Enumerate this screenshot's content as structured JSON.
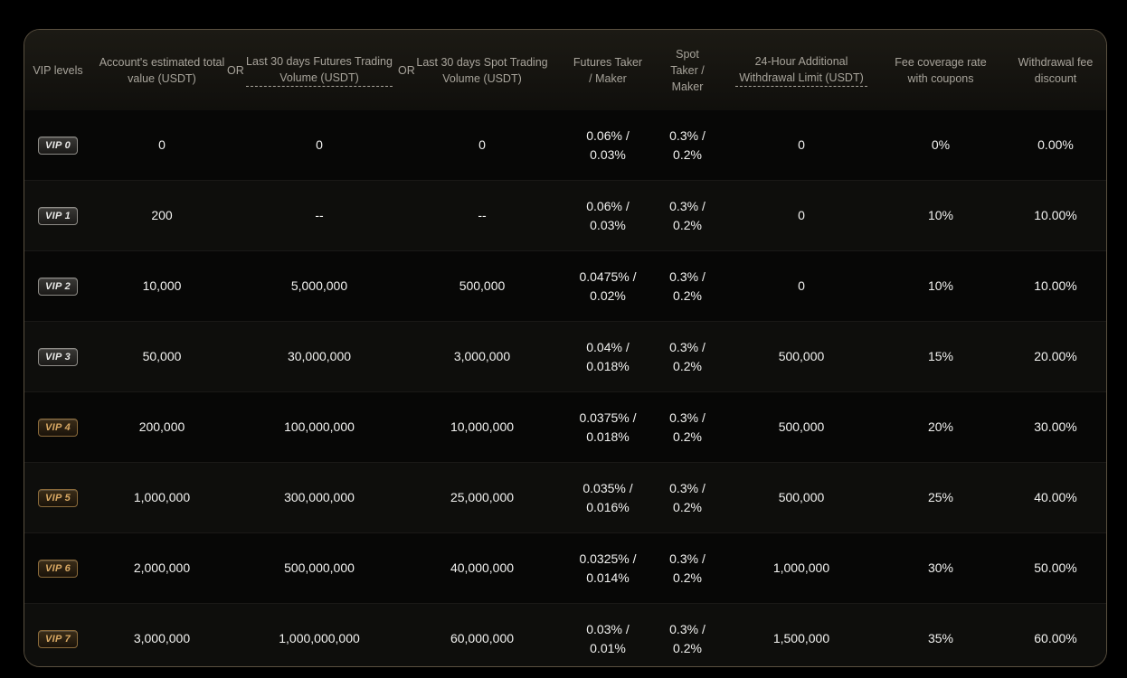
{
  "header": {
    "vip_levels": "VIP levels",
    "account_value": "Account's estimated total value (USDT)",
    "or_1": "OR",
    "futures_volume": "Last 30 days Futures Trading Volume (USDT)",
    "or_2": "OR",
    "spot_volume": "Last 30 days Spot Trading Volume (USDT)",
    "futures_fee": "Futures Taker / Maker",
    "spot_fee": "Spot Taker / Maker",
    "withdrawal_limit": "24-Hour Additional Withdrawal Limit (USDT)",
    "fee_coverage": "Fee coverage rate with coupons",
    "withdrawal_discount": "Withdrawal fee discount"
  },
  "rows": [
    {
      "level": "VIP 0",
      "account": "0",
      "futures_vol": "0",
      "spot_vol": "0",
      "futures_fee_1": "0.06% /",
      "futures_fee_2": "0.03%",
      "spot_fee_1": "0.3% /",
      "spot_fee_2": "0.2%",
      "limit": "0",
      "coverage": "0%",
      "discount": "0.00%"
    },
    {
      "level": "VIP 1",
      "account": "200",
      "futures_vol": "--",
      "spot_vol": "--",
      "futures_fee_1": "0.06% /",
      "futures_fee_2": "0.03%",
      "spot_fee_1": "0.3% /",
      "spot_fee_2": "0.2%",
      "limit": "0",
      "coverage": "10%",
      "discount": "10.00%"
    },
    {
      "level": "VIP 2",
      "account": "10,000",
      "futures_vol": "5,000,000",
      "spot_vol": "500,000",
      "futures_fee_1": "0.0475% /",
      "futures_fee_2": "0.02%",
      "spot_fee_1": "0.3% /",
      "spot_fee_2": "0.2%",
      "limit": "0",
      "coverage": "10%",
      "discount": "10.00%"
    },
    {
      "level": "VIP 3",
      "account": "50,000",
      "futures_vol": "30,000,000",
      "spot_vol": "3,000,000",
      "futures_fee_1": "0.04% /",
      "futures_fee_2": "0.018%",
      "spot_fee_1": "0.3% /",
      "spot_fee_2": "0.2%",
      "limit": "500,000",
      "coverage": "15%",
      "discount": "20.00%"
    },
    {
      "level": "VIP 4",
      "account": "200,000",
      "futures_vol": "100,000,000",
      "spot_vol": "10,000,000",
      "futures_fee_1": "0.0375% /",
      "futures_fee_2": "0.018%",
      "spot_fee_1": "0.3% /",
      "spot_fee_2": "0.2%",
      "limit": "500,000",
      "coverage": "20%",
      "discount": "30.00%"
    },
    {
      "level": "VIP 5",
      "account": "1,000,000",
      "futures_vol": "300,000,000",
      "spot_vol": "25,000,000",
      "futures_fee_1": "0.035% /",
      "futures_fee_2": "0.016%",
      "spot_fee_1": "0.3% /",
      "spot_fee_2": "0.2%",
      "limit": "500,000",
      "coverage": "25%",
      "discount": "40.00%"
    },
    {
      "level": "VIP 6",
      "account": "2,000,000",
      "futures_vol": "500,000,000",
      "spot_vol": "40,000,000",
      "futures_fee_1": "0.0325% /",
      "futures_fee_2": "0.014%",
      "spot_fee_1": "0.3% /",
      "spot_fee_2": "0.2%",
      "limit": "1,000,000",
      "coverage": "30%",
      "discount": "50.00%"
    },
    {
      "level": "VIP 7",
      "account": "3,000,000",
      "futures_vol": "1,000,000,000",
      "spot_vol": "60,000,000",
      "futures_fee_1": "0.03% /",
      "futures_fee_2": "0.01%",
      "spot_fee_1": "0.3% /",
      "spot_fee_2": "0.2%",
      "limit": "1,500,000",
      "coverage": "35%",
      "discount": "60.00%"
    }
  ],
  "colors": {
    "background": "#000000",
    "card_border": "#5a5040",
    "header_text": "#a8a49b",
    "cell_text": "#f2f2f0",
    "gold_badge": "#d9a964"
  }
}
